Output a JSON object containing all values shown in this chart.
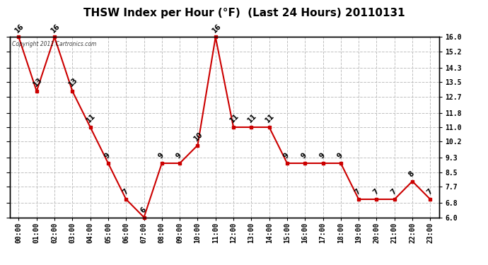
{
  "title": "THSW Index per Hour (°F)  (Last 24 Hours) 20110131",
  "hours": [
    "00:00",
    "01:00",
    "02:00",
    "03:00",
    "04:00",
    "05:00",
    "06:00",
    "07:00",
    "08:00",
    "09:00",
    "10:00",
    "11:00",
    "12:00",
    "13:00",
    "14:00",
    "15:00",
    "16:00",
    "17:00",
    "18:00",
    "19:00",
    "20:00",
    "21:00",
    "22:00",
    "23:00"
  ],
  "values": [
    16,
    13,
    16,
    13,
    11,
    9,
    7,
    6,
    9,
    9,
    10,
    16,
    11,
    11,
    11,
    9,
    9,
    9,
    9,
    7,
    7,
    7,
    8,
    7
  ],
  "ylim": [
    6.0,
    16.0
  ],
  "yticks": [
    6.0,
    6.8,
    7.7,
    8.5,
    9.3,
    10.2,
    11.0,
    11.8,
    12.7,
    13.5,
    14.3,
    15.2,
    16.0
  ],
  "line_color": "#cc0000",
  "marker_color": "#cc0000",
  "bg_color": "#ffffff",
  "plot_bg_color": "#ffffff",
  "grid_color": "#c0c0c0",
  "copyright_text": "Copyright 2011 Cartronics.com",
  "title_fontsize": 11,
  "label_fontsize": 7,
  "annotation_fontsize": 7
}
